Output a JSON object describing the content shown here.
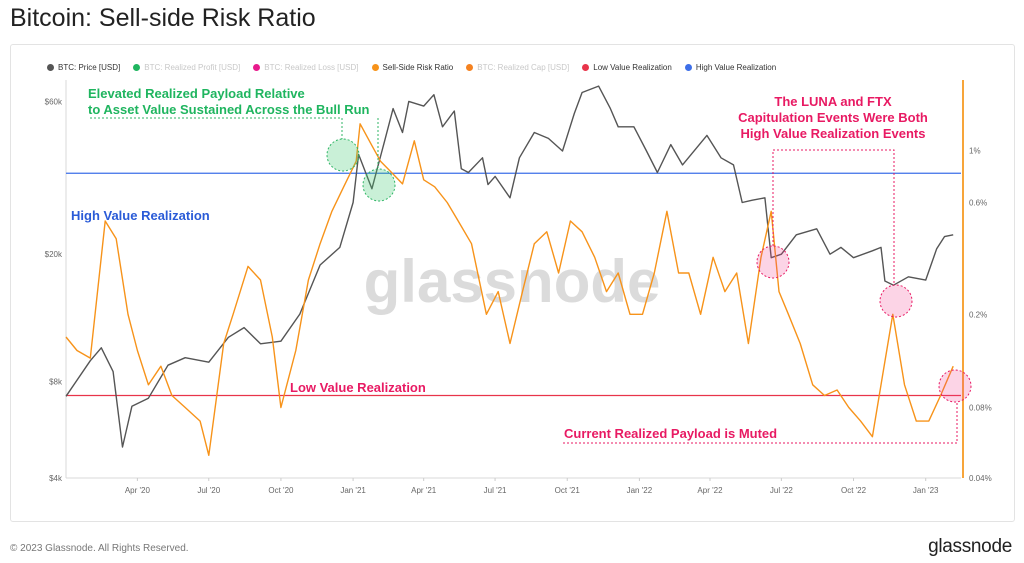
{
  "title": "Bitcoin: Sell-side Risk Ratio",
  "legend": [
    {
      "label": "BTC: Price [USD]",
      "color": "#555555",
      "enabled": true
    },
    {
      "label": "BTC: Realized Profit [USD]",
      "color": "#1fb55f",
      "enabled": false
    },
    {
      "label": "BTC: Realized Loss [USD]",
      "color": "#e81a8c",
      "enabled": false
    },
    {
      "label": "Sell-Side Risk Ratio",
      "color": "#f7931a",
      "enabled": true
    },
    {
      "label": "BTC: Realized Cap [USD]",
      "color": "#f58220",
      "enabled": false
    },
    {
      "label": "Low Value Realization",
      "color": "#e8344a",
      "enabled": true
    },
    {
      "label": "High Value Realization",
      "color": "#3d6fe8",
      "enabled": true
    }
  ],
  "watermark": "glassnode",
  "annotations": {
    "elevated_line1": "Elevated Realized Payload Relative",
    "elevated_line2": "to Asset Value Sustained Across the Bull Run",
    "luna_line1": "The LUNA and FTX",
    "luna_line2": "Capitulation Events Were Both",
    "luna_line3": "High Value Realization Events",
    "high_label": "High Value Realization",
    "low_label": "Low Value Realization",
    "current_label": "Current Realized Payload is Muted"
  },
  "footer": {
    "copyright": "© 2023 Glassnode. All Rights Reserved.",
    "logo": "glassnode"
  },
  "chart_data": {
    "type": "line",
    "x_ticks": [
      "Apr '20",
      "Jul '20",
      "Oct '20",
      "Jan '21",
      "Apr '21",
      "Jul '21",
      "Oct '21",
      "Jan '22",
      "Apr '22",
      "Jul '22",
      "Oct '22",
      "Jan '23"
    ],
    "left_axis": {
      "scale": "log",
      "ticks": [
        "$4k",
        "$8k",
        "$20k",
        "$60k"
      ],
      "tick_values": [
        4000,
        8000,
        20000,
        60000
      ],
      "range": [
        4000,
        70000
      ]
    },
    "right_axis": {
      "scale": "log",
      "ticks": [
        "0.04%",
        "0.08%",
        "0.2%",
        "0.6%",
        "1%"
      ],
      "tick_values": [
        0.04,
        0.08,
        0.2,
        0.6,
        1.0
      ],
      "range": [
        0.04,
        2.0
      ]
    },
    "thresholds": {
      "high_value_realization": 0.8,
      "low_value_realization": 0.09
    },
    "series": [
      {
        "name": "BTC: Price [USD]",
        "axis": "left",
        "color": "#555555",
        "x": [
          "2020-01-01",
          "2020-02-01",
          "2020-02-15",
          "2020-03-01",
          "2020-03-13",
          "2020-03-25",
          "2020-04-15",
          "2020-05-10",
          "2020-06-01",
          "2020-07-01",
          "2020-07-26",
          "2020-08-15",
          "2020-09-05",
          "2020-10-01",
          "2020-10-25",
          "2020-11-20",
          "2020-12-15",
          "2021-01-01",
          "2021-01-08",
          "2021-01-25",
          "2021-02-10",
          "2021-02-21",
          "2021-03-05",
          "2021-03-13",
          "2021-04-01",
          "2021-04-14",
          "2021-04-25",
          "2021-05-10",
          "2021-05-19",
          "2021-05-28",
          "2021-06-15",
          "2021-06-22",
          "2021-07-01",
          "2021-07-20",
          "2021-08-01",
          "2021-08-20",
          "2021-09-07",
          "2021-09-25",
          "2021-10-10",
          "2021-10-20",
          "2021-11-10",
          "2021-11-25",
          "2021-12-05",
          "2021-12-25",
          "2022-01-10",
          "2022-01-24",
          "2022-02-10",
          "2022-02-25",
          "2022-03-28",
          "2022-04-15",
          "2022-05-01",
          "2022-05-12",
          "2022-05-25",
          "2022-06-10",
          "2022-06-18",
          "2022-07-01",
          "2022-07-20",
          "2022-08-15",
          "2022-09-01",
          "2022-09-15",
          "2022-10-01",
          "2022-10-25",
          "2022-11-05",
          "2022-11-10",
          "2022-11-21",
          "2022-12-10",
          "2023-01-01",
          "2023-01-15",
          "2023-01-25",
          "2023-02-05"
        ],
        "values": [
          7200,
          9300,
          10200,
          8600,
          5000,
          6700,
          7100,
          9000,
          9500,
          9200,
          11000,
          11800,
          10500,
          10700,
          13000,
          18500,
          21000,
          29000,
          41000,
          32000,
          45000,
          57000,
          48000,
          60000,
          58000,
          63000,
          50000,
          56000,
          37000,
          36000,
          40000,
          33000,
          35000,
          30000,
          40000,
          48000,
          46000,
          42000,
          55000,
          64000,
          67000,
          57000,
          50000,
          50000,
          42000,
          36000,
          44000,
          38000,
          47000,
          40000,
          38000,
          29000,
          29500,
          30000,
          19500,
          20000,
          23000,
          24000,
          20000,
          21000,
          19500,
          20500,
          21000,
          16500,
          16000,
          17000,
          16600,
          20800,
          22700,
          23000
        ]
      },
      {
        "name": "Sell-Side Risk Ratio",
        "axis": "right",
        "color": "#f7931a",
        "x": [
          "2020-01-01",
          "2020-01-15",
          "2020-02-01",
          "2020-02-20",
          "2020-03-05",
          "2020-03-20",
          "2020-04-01",
          "2020-04-15",
          "2020-05-01",
          "2020-05-15",
          "2020-06-01",
          "2020-06-20",
          "2020-07-01",
          "2020-07-20",
          "2020-08-01",
          "2020-08-20",
          "2020-09-05",
          "2020-09-20",
          "2020-10-01",
          "2020-10-20",
          "2020-11-05",
          "2020-11-20",
          "2020-12-05",
          "2020-12-20",
          "2021-01-05",
          "2021-01-10",
          "2021-01-25",
          "2021-02-05",
          "2021-02-20",
          "2021-03-05",
          "2021-03-20",
          "2021-04-01",
          "2021-04-15",
          "2021-05-01",
          "2021-05-15",
          "2021-06-01",
          "2021-06-20",
          "2021-07-05",
          "2021-07-20",
          "2021-08-05",
          "2021-08-20",
          "2021-09-05",
          "2021-09-20",
          "2021-10-05",
          "2021-10-20",
          "2021-11-05",
          "2021-11-20",
          "2021-12-05",
          "2021-12-20",
          "2022-01-05",
          "2022-01-20",
          "2022-02-05",
          "2022-02-20",
          "2022-03-05",
          "2022-03-20",
          "2022-04-05",
          "2022-04-20",
          "2022-05-05",
          "2022-05-20",
          "2022-06-05",
          "2022-06-18",
          "2022-06-28",
          "2022-07-10",
          "2022-07-25",
          "2022-08-10",
          "2022-08-25",
          "2022-09-10",
          "2022-09-25",
          "2022-10-10",
          "2022-10-25",
          "2022-11-09",
          "2022-11-20",
          "2022-12-05",
          "2022-12-20",
          "2023-01-05",
          "2023-01-20",
          "2023-02-05"
        ],
        "values": [
          0.16,
          0.14,
          0.13,
          0.5,
          0.42,
          0.2,
          0.14,
          0.1,
          0.12,
          0.09,
          0.08,
          0.07,
          0.05,
          0.15,
          0.2,
          0.32,
          0.28,
          0.16,
          0.08,
          0.14,
          0.28,
          0.4,
          0.55,
          0.7,
          0.9,
          1.3,
          1.05,
          0.9,
          0.8,
          0.72,
          1.1,
          0.75,
          0.7,
          0.6,
          0.5,
          0.4,
          0.2,
          0.25,
          0.15,
          0.25,
          0.4,
          0.45,
          0.3,
          0.5,
          0.45,
          0.35,
          0.25,
          0.3,
          0.2,
          0.2,
          0.3,
          0.55,
          0.3,
          0.3,
          0.2,
          0.35,
          0.25,
          0.3,
          0.15,
          0.35,
          0.55,
          0.25,
          0.2,
          0.15,
          0.1,
          0.09,
          0.095,
          0.08,
          0.07,
          0.06,
          0.12,
          0.2,
          0.1,
          0.07,
          0.07,
          0.09,
          0.12
        ]
      }
    ]
  }
}
